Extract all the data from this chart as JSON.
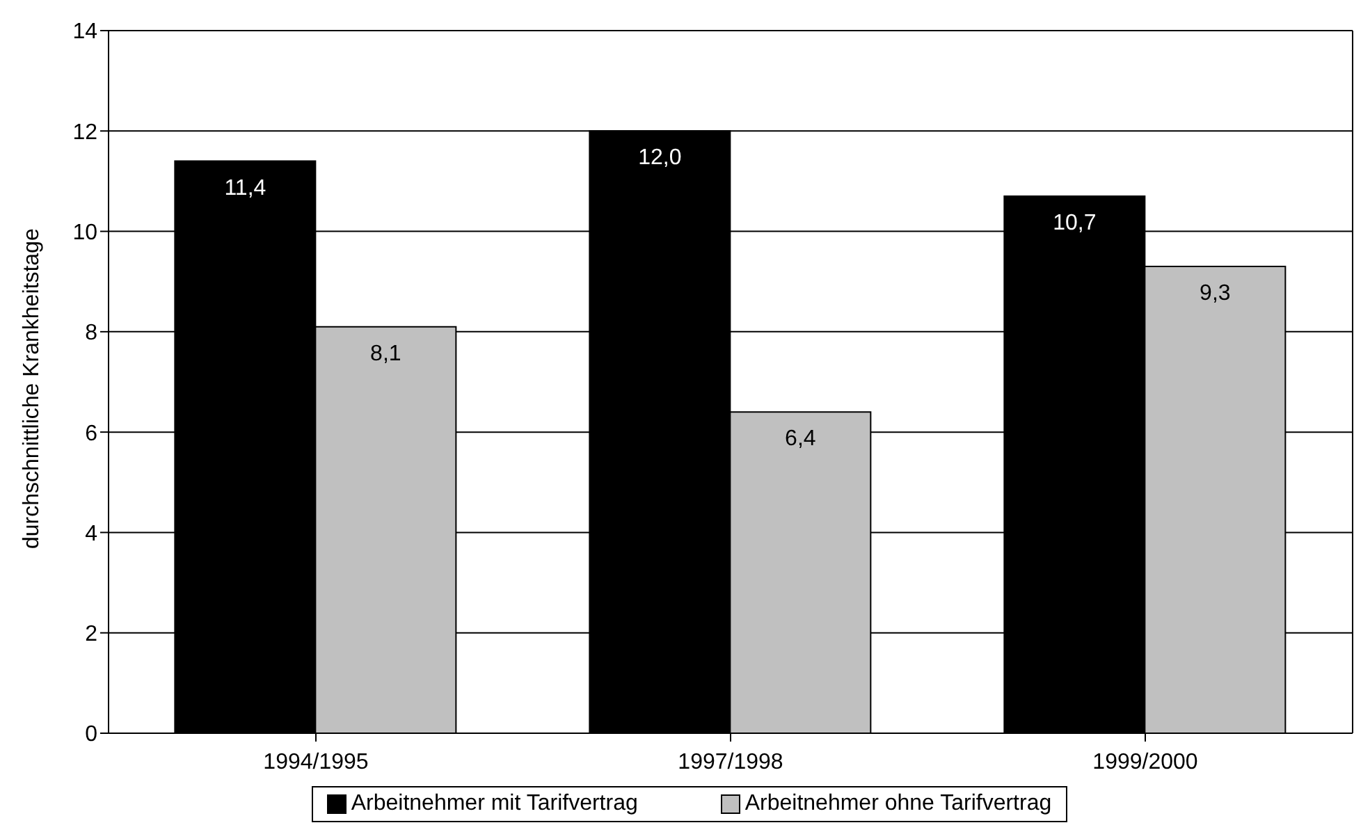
{
  "chart_data": {
    "type": "bar",
    "ylabel": "durchschnittliche Krankheitstage",
    "categories": [
      "1994/1995",
      "1997/1998",
      "1999/2000"
    ],
    "series": [
      {
        "name": "Arbeitnehmer mit Tarifvertrag",
        "color": "#000000",
        "values": [
          11.4,
          12.0,
          10.7
        ],
        "value_labels": [
          "11,4",
          "12,0",
          "10,7"
        ]
      },
      {
        "name": "Arbeitnehmer ohne Tarifvertrag",
        "color": "#c0c0c0",
        "values": [
          8.1,
          6.4,
          9.3
        ],
        "value_labels": [
          "8,1",
          "6,4",
          "9,3"
        ]
      }
    ],
    "ylim": [
      0,
      14
    ],
    "yticks": [
      0,
      2,
      4,
      6,
      8,
      10,
      12,
      14
    ],
    "grid": "y",
    "legend": "bottom"
  }
}
